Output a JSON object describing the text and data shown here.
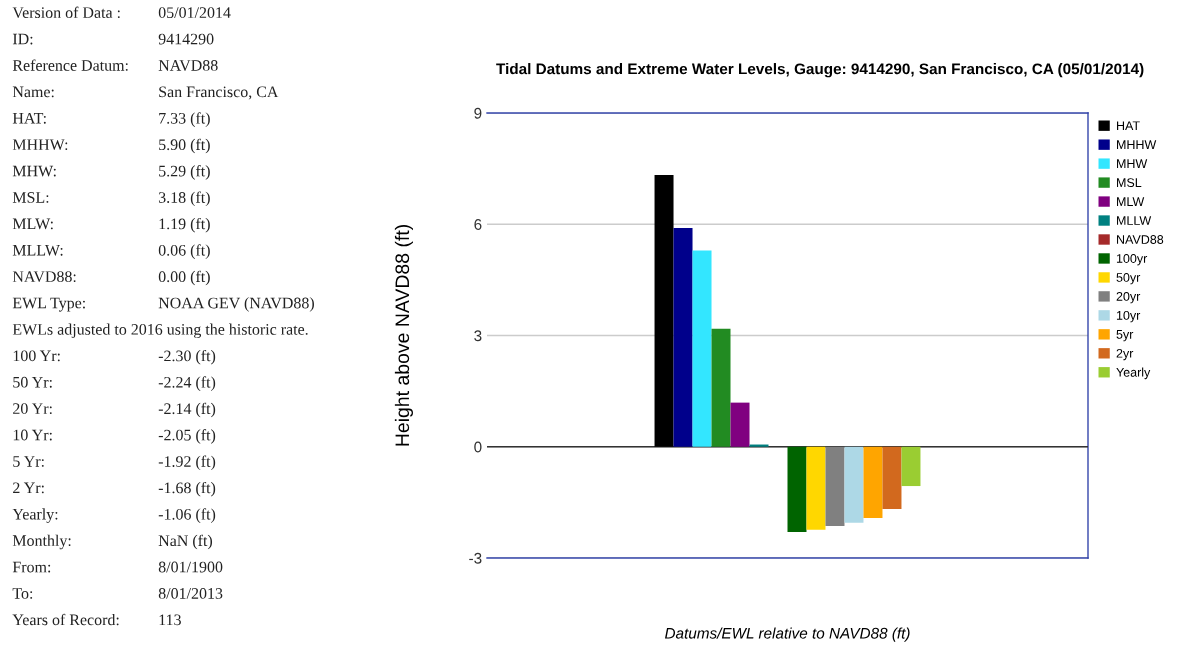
{
  "chart_data": [
    {
      "type": "other",
      "annotations": [
        [
          "Version of Data :",
          "05/01/2014"
        ],
        [
          "ID:",
          "9414290"
        ],
        [
          "Reference Datum:",
          "NAVD88"
        ],
        [
          "Name:",
          "San Francisco, CA"
        ],
        [
          "HAT:",
          "7.33 (ft)"
        ],
        [
          "MHHW:",
          "5.90 (ft)"
        ],
        [
          "MHW:",
          "5.29 (ft)"
        ],
        [
          "MSL:",
          "3.18 (ft)"
        ],
        [
          "MLW:",
          "1.19 (ft)"
        ],
        [
          "MLLW:",
          "0.06 (ft)"
        ],
        [
          "NAVD88:",
          "0.00 (ft)"
        ],
        [
          "EWL Type:",
          "NOAA GEV (NAVD88)"
        ],
        [
          "EWLs adjusted to 2016 using the historic rate."
        ],
        [
          "100 Yr:",
          "-2.30 (ft)"
        ],
        [
          "50 Yr:",
          "-2.24 (ft)"
        ],
        [
          "20 Yr:",
          "-2.14 (ft)"
        ],
        [
          "10 Yr:",
          "-2.05 (ft)"
        ],
        [
          "5 Yr:",
          "-1.92 (ft)"
        ],
        [
          "2 Yr:",
          "-1.68 (ft)"
        ],
        [
          "Yearly:",
          "-1.06 (ft)"
        ],
        [
          "Monthly:",
          "NaN (ft)"
        ],
        [
          "From:",
          "8/01/1900"
        ],
        [
          "To:",
          "8/01/2013"
        ],
        [
          "Years of Record:",
          "113"
        ]
      ]
    },
    {
      "type": "bar",
      "title": "Tidal Datums and Extreme Water Levels, Gauge: 9414290, San Francisco, CA (05/01/2014)",
      "xlabel": "Datums/EWL relative to NAVD88 (ft)",
      "ylabel": "Height above NAVD88 (ft)",
      "categories": [
        null
      ],
      "series": [
        {
          "name": "HAT",
          "color": "#000000",
          "values": [
            7.33
          ]
        },
        {
          "name": "MHHW",
          "color": "#00008b",
          "values": [
            5.9
          ]
        },
        {
          "name": "MHW",
          "color": "#33e6ff",
          "values": [
            5.29
          ]
        },
        {
          "name": "MSL",
          "color": "#228b22",
          "values": [
            3.18
          ]
        },
        {
          "name": "MLW",
          "color": "#800080",
          "values": [
            1.19
          ]
        },
        {
          "name": "MLLW",
          "color": "#008080",
          "values": [
            0.06
          ]
        },
        {
          "name": "NAVD88",
          "color": "#a52a2a",
          "values": [
            0.0
          ]
        },
        {
          "name": "100yr",
          "color": "#006400",
          "values": [
            -2.3
          ]
        },
        {
          "name": "50yr",
          "color": "#ffd700",
          "values": [
            -2.24
          ]
        },
        {
          "name": "20yr",
          "color": "#808080",
          "values": [
            -2.14
          ]
        },
        {
          "name": "10yr",
          "color": "#add8e6",
          "values": [
            -2.05
          ]
        },
        {
          "name": "5yr",
          "color": "#ffa500",
          "values": [
            -1.92
          ]
        },
        {
          "name": "2yr",
          "color": "#d2691e",
          "values": [
            -1.68
          ]
        },
        {
          "name": "Yearly",
          "color": "#9acd32",
          "values": [
            -1.06
          ]
        }
      ],
      "ylim": [
        -3,
        9
      ],
      "yticks": [
        -3,
        0,
        3,
        6,
        9
      ],
      "grid": "y",
      "legend": "right",
      "ref_lines": [
        {
          "axis": "y",
          "value": 0,
          "color": "#333333"
        }
      ]
    }
  ]
}
